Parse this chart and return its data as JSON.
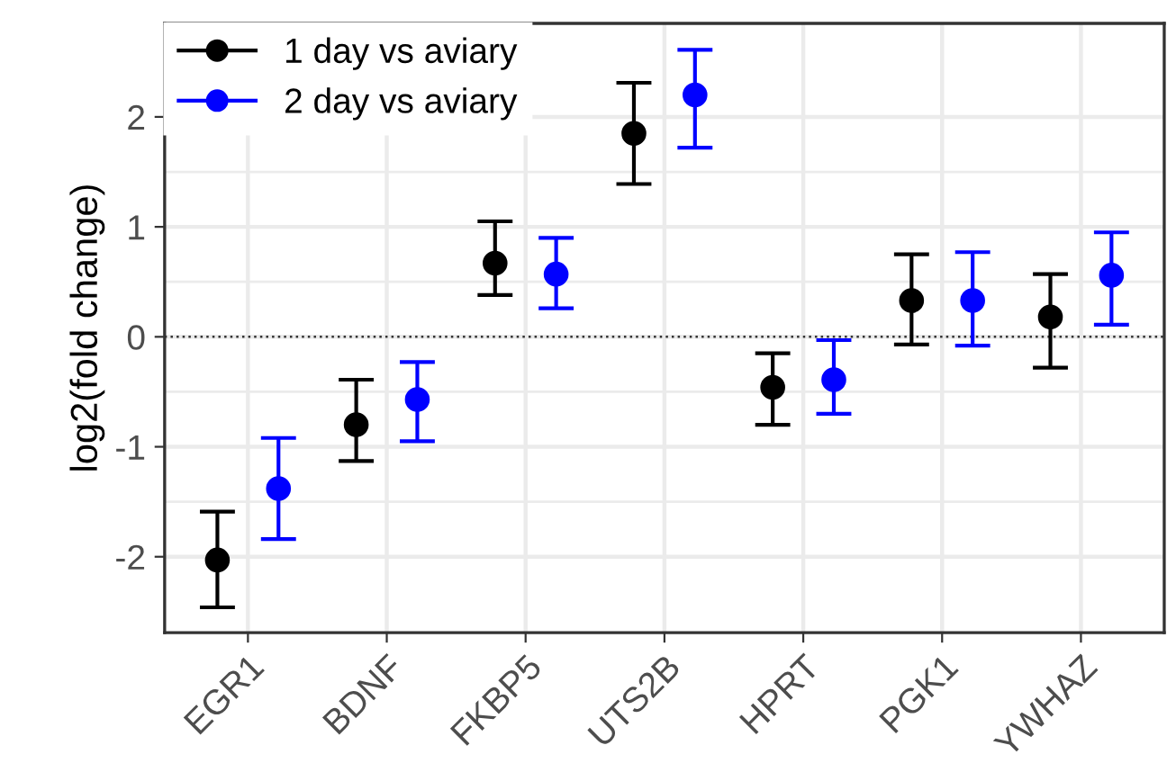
{
  "chart_data": {
    "type": "scatter",
    "ylabel": "log2(fold change)",
    "categories": [
      "EGR1",
      "BDNF",
      "FKBP5",
      "UTS2B",
      "HPRT",
      "PGK1",
      "YWHAZ"
    ],
    "series": [
      {
        "name": "1 day vs aviary",
        "color": "#000000",
        "values": [
          -2.03,
          -0.8,
          0.67,
          1.85,
          -0.46,
          0.33,
          0.18
        ],
        "errors": [
          [
            -2.46,
            -1.59
          ],
          [
            -1.13,
            -0.39
          ],
          [
            0.38,
            1.05
          ],
          [
            1.39,
            2.31
          ],
          [
            -0.8,
            -0.15
          ],
          [
            -0.07,
            0.75
          ],
          [
            -0.28,
            0.57
          ]
        ]
      },
      {
        "name": "2 day vs aviary",
        "color": "#0000ff",
        "values": [
          -1.38,
          -0.57,
          0.57,
          2.2,
          -0.39,
          0.33,
          0.56
        ],
        "errors": [
          [
            -1.84,
            -0.92
          ],
          [
            -0.95,
            -0.23
          ],
          [
            0.26,
            0.9
          ],
          [
            1.72,
            2.61
          ],
          [
            -0.7,
            -0.03
          ],
          [
            -0.08,
            0.77
          ],
          [
            0.11,
            0.95
          ]
        ]
      }
    ],
    "ylim": [
      -2.69,
      2.85
    ],
    "yticks": [
      -2,
      -1,
      0,
      1,
      2
    ],
    "grid": true,
    "legend": "top left",
    "marker": "circle",
    "ref_lines": [
      {
        "axis": "y",
        "value": 0,
        "color": "#333333",
        "line_style": "dotted"
      }
    ]
  }
}
